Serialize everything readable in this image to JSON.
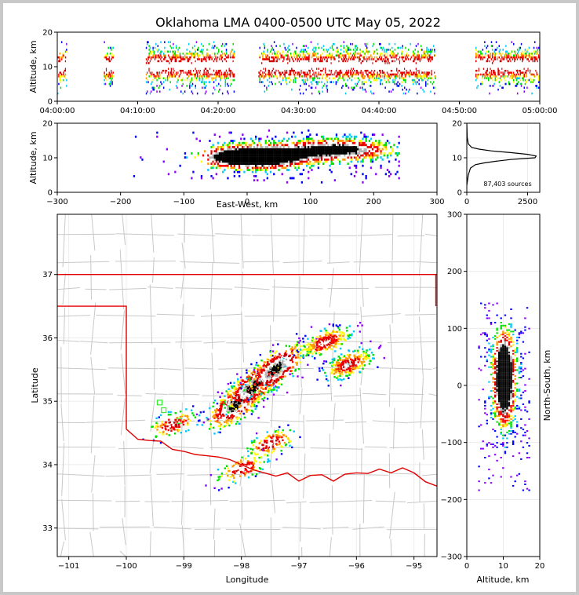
{
  "figure": {
    "title": "Oklahoma LMA 0400-0500 UTC May 05, 2022",
    "background": "#ffffff",
    "frame_color": "#c8c8c8"
  },
  "colors": {
    "density_scale": [
      "#8c00ff",
      "#0000ff",
      "#00c8ff",
      "#00e000",
      "#ffff00",
      "#ff9a00",
      "#ff0000",
      "#d20000",
      "#ffffff",
      "#b4b4b4",
      "#000000"
    ],
    "state_border": "#e00000",
    "county_lines": "#c8c8c8",
    "curve": "#000000",
    "station_marker": "#33ee33"
  },
  "chart_data": [
    {
      "id": "time_height",
      "type": "heatmap",
      "ylabel": "Altitude, km",
      "xlabel": "",
      "xlim_minutes": [
        0,
        60
      ],
      "ylim": [
        0,
        20
      ],
      "x_ticks": [
        "04:00:00",
        "04:10:00",
        "04:20:00",
        "04:30:00",
        "04:40:00",
        "04:50:00",
        "05:00:00"
      ],
      "y_ticks": [
        "0",
        "10",
        "20"
      ],
      "active_segments_minutes": [
        [
          0,
          1.1
        ],
        [
          5.8,
          7
        ],
        [
          11,
          22
        ],
        [
          25,
          47
        ],
        [
          52,
          60
        ]
      ],
      "peak_altitude_km": 10
    },
    {
      "id": "ew_height",
      "type": "heatmap",
      "xlabel": "East-West, km",
      "ylabel": "Altitude, km",
      "xlim": [
        -300,
        300
      ],
      "ylim": [
        0,
        20
      ],
      "x_ticks": [
        "−300",
        "−200",
        "−100",
        "0",
        "100",
        "200",
        "300"
      ],
      "y_ticks": [
        "0",
        "10",
        "20"
      ],
      "cores": [
        {
          "x": -10,
          "z": 10
        },
        {
          "x": 30,
          "z": 10
        },
        {
          "x": 140,
          "z": 12
        }
      ]
    },
    {
      "id": "altitude_histogram",
      "type": "line",
      "xlim": [
        0,
        3000
      ],
      "ylim": [
        0,
        20
      ],
      "x_ticks": [
        "0",
        "2500"
      ],
      "y_ticks": [
        "0",
        "10",
        "20"
      ],
      "annotation": "87,403 sources",
      "x": [
        0,
        20,
        60,
        150,
        350,
        700,
        1200,
        1800,
        2400,
        2800,
        2850,
        2500,
        1800,
        1000,
        500,
        200,
        60,
        15,
        0
      ],
      "y": [
        2,
        3,
        5,
        7,
        8,
        8.5,
        9,
        9.5,
        9.8,
        10,
        10.5,
        11,
        11.5,
        12,
        12.5,
        13,
        14,
        16,
        20
      ]
    },
    {
      "id": "plan_view",
      "type": "heatmap",
      "xlabel": "Longitude",
      "ylabel": "Latitude",
      "xlim": [
        -101.2,
        -94.6
      ],
      "ylim": [
        32.55,
        37.95
      ],
      "x_ticks": [
        "−101",
        "−100",
        "−99",
        "−98",
        "−97",
        "−96",
        "−95"
      ],
      "y_ticks": [
        "33",
        "34",
        "35",
        "36",
        "37"
      ],
      "storm_cells": [
        {
          "lon": -98.1,
          "lat": 34.98
        },
        {
          "lon": -97.8,
          "lat": 35.25
        },
        {
          "lon": -97.42,
          "lat": 35.52
        },
        {
          "lon": -96.15,
          "lat": 35.6
        },
        {
          "lon": -96.55,
          "lat": 35.95
        },
        {
          "lon": -97.5,
          "lat": 34.35
        },
        {
          "lon": -98.0,
          "lat": 33.95
        },
        {
          "lon": -99.2,
          "lat": 34.65
        }
      ],
      "stations": [
        {
          "lon": -99.42,
          "lat": 34.98
        },
        {
          "lon": -99.35,
          "lat": 34.86
        },
        {
          "lon": -99.08,
          "lat": 34.69
        }
      ]
    },
    {
      "id": "ns_height",
      "type": "heatmap",
      "xlabel": "Altitude, km",
      "ylabel": "North-South, km",
      "xlim": [
        0,
        20
      ],
      "ylim": [
        -300,
        300
      ],
      "x_ticks": [
        "0",
        "10",
        "20"
      ],
      "y_ticks": [
        "−300",
        "−200",
        "−100",
        "0",
        "100",
        "200",
        "300"
      ],
      "cores": [
        {
          "z": 10,
          "y": -15
        },
        {
          "z": 10,
          "y": 40
        }
      ]
    }
  ]
}
